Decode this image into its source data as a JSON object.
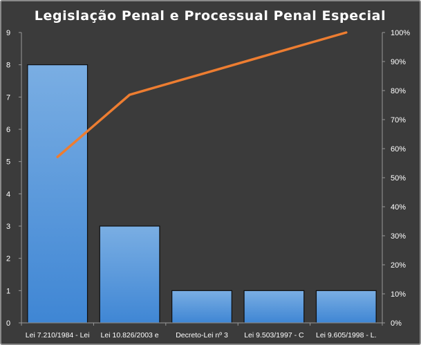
{
  "chart_data": {
    "type": "bar",
    "title": "Legislação  Penal  e Processual  Penal  Especial",
    "categories": [
      "Lei 7.210/1984 - Lei",
      "Lei 10.826/2003 e",
      "Decreto-Lei nº 3",
      "Lei 9.503/1997 - C",
      "Lei 9.605/1998 - L."
    ],
    "series": [
      {
        "type": "bar",
        "values": [
          8,
          3,
          1,
          1,
          1
        ],
        "color": "#4a8fd6"
      },
      {
        "type": "line",
        "axis": "secondary",
        "values": [
          0.5714,
          0.7857,
          0.8571,
          0.9286,
          1.0
        ],
        "color": "#ed7d31"
      }
    ],
    "y_ticks": [
      "0",
      "1",
      "2",
      "3",
      "4",
      "5",
      "6",
      "7",
      "8",
      "9"
    ],
    "y2_ticks": [
      "0%",
      "10%",
      "20%",
      "30%",
      "40%",
      "50%",
      "60%",
      "70%",
      "80%",
      "90%",
      "100%"
    ],
    "ylim": [
      0,
      9
    ],
    "y2lim": [
      0,
      1
    ],
    "grid": false,
    "legend": "none",
    "background_color": "#3b3b3b",
    "text_color": "#ffffff"
  }
}
